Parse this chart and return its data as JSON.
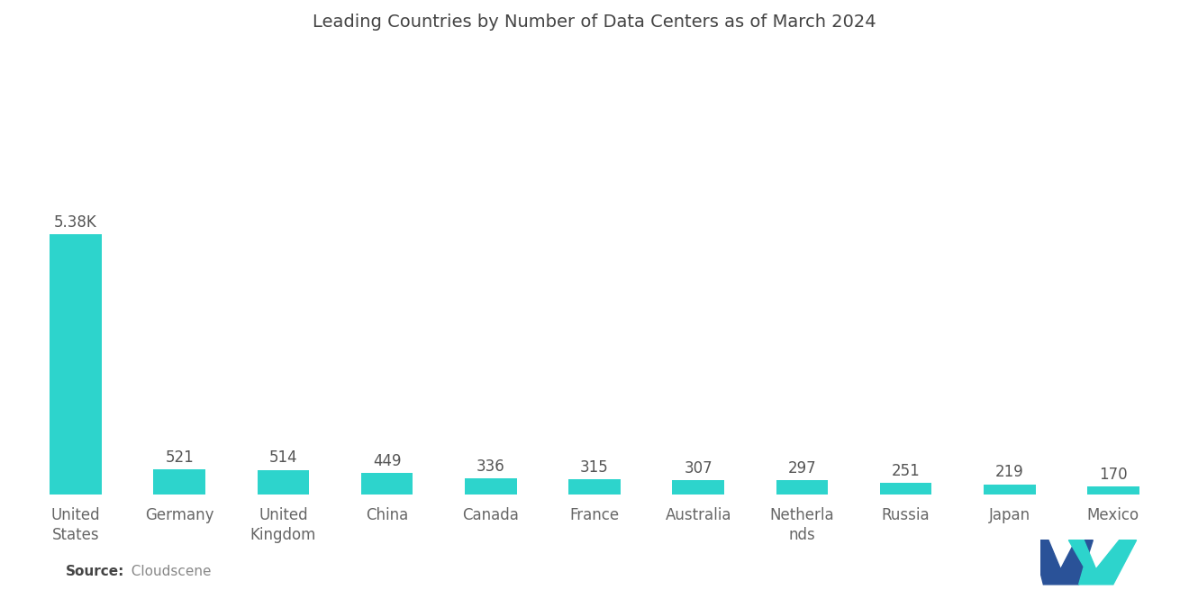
{
  "title": "Leading Countries by Number of Data Centers as of March 2024",
  "categories": [
    "United\nStates",
    "Germany",
    "United\nKingdom",
    "China",
    "Canada",
    "France",
    "Australia",
    "Netherla\nnds",
    "Russia",
    "Japan",
    "Mexico"
  ],
  "values": [
    5380,
    521,
    514,
    449,
    336,
    315,
    307,
    297,
    251,
    219,
    170
  ],
  "labels": [
    "5.38K",
    "521",
    "514",
    "449",
    "336",
    "315",
    "307",
    "297",
    "251",
    "219",
    "170"
  ],
  "bar_color": "#2dd4cc",
  "background_color": "#ffffff",
  "title_fontsize": 14,
  "label_fontsize": 12,
  "tick_fontsize": 12,
  "source_bold": "Source:",
  "source_normal": "  Cloudscene",
  "ylim": [
    0,
    9200
  ],
  "bar_width": 0.5,
  "logo_navy": "#2a5298",
  "logo_teal": "#2dd4cc"
}
